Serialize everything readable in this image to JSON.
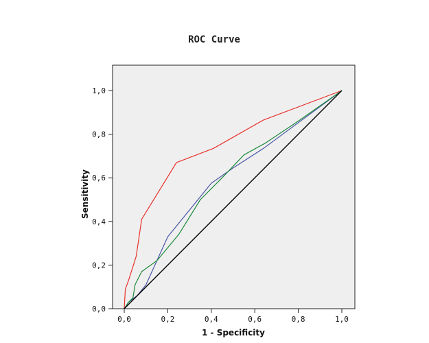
{
  "chart_data": {
    "type": "line",
    "title": "ROC Curve",
    "xlabel": "1 - Specificity",
    "ylabel": "Sensitivity",
    "xlim": [
      0,
      1
    ],
    "ylim": [
      0,
      1
    ],
    "xticks": [
      "0,0",
      "0,2",
      "0,4",
      "0,6",
      "0,8",
      "1,0"
    ],
    "yticks": [
      "0,0",
      "0,2",
      "0,4",
      "0,6",
      "0,8",
      "1,0"
    ],
    "plot_background": "#efefef",
    "grid": false,
    "legend": "none",
    "series": [
      {
        "color": "#e8312a",
        "x": [
          0.0,
          0.005,
          0.02,
          0.055,
          0.08,
          0.24,
          0.41,
          0.64,
          1.0
        ],
        "y": [
          0.0,
          0.09,
          0.13,
          0.24,
          0.41,
          0.67,
          0.735,
          0.865,
          1.0
        ]
      },
      {
        "color": "#4a55a8",
        "x": [
          0.0,
          0.02,
          0.06,
          0.1,
          0.2,
          0.4,
          0.5,
          0.64,
          1.0
        ],
        "y": [
          0.0,
          0.03,
          0.06,
          0.11,
          0.33,
          0.575,
          0.645,
          0.735,
          1.0
        ]
      },
      {
        "color": "#1a8a3a",
        "x": [
          0.0,
          0.02,
          0.04,
          0.05,
          0.08,
          0.15,
          0.2,
          0.25,
          0.35,
          0.45,
          0.55,
          0.65,
          0.8,
          1.0
        ],
        "y": [
          0.0,
          0.03,
          0.05,
          0.11,
          0.17,
          0.22,
          0.28,
          0.34,
          0.5,
          0.6,
          0.705,
          0.76,
          0.86,
          1.0
        ]
      },
      {
        "color": "#000000",
        "x": [
          0.0,
          1.0
        ],
        "y": [
          0.0,
          1.0
        ]
      }
    ]
  }
}
